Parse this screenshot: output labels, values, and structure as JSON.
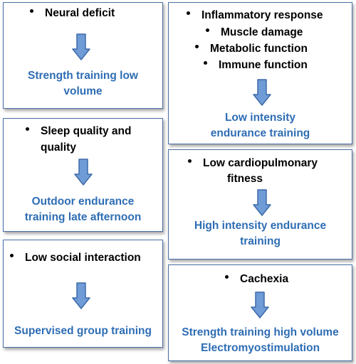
{
  "boxes": [
    {
      "causes": [
        "Neural deficit"
      ],
      "outcome": [
        "Strength training low",
        "volume"
      ],
      "arrow_icon": "down-arrow-icon"
    },
    {
      "causes": [
        "Inflammatory response",
        "Muscle damage",
        "Metabolic function",
        "Immune function"
      ],
      "outcome": [
        "Low intensity",
        "endurance training"
      ],
      "arrow_icon": "down-arrow-icon"
    },
    {
      "causes": [
        "Sleep quality and",
        "quality"
      ],
      "outcome": [
        "Outdoor endurance",
        "training late afternoon"
      ],
      "arrow_icon": "down-arrow-icon"
    },
    {
      "causes": [
        "Low cardiopulmonary",
        "fitness"
      ],
      "outcome": [
        "High intensity endurance",
        "training"
      ],
      "arrow_icon": "down-arrow-icon"
    },
    {
      "causes": [
        "Low social interaction"
      ],
      "outcome": [
        "Supervised group training"
      ],
      "arrow_icon": "down-arrow-icon"
    },
    {
      "causes": [
        "Cachexia"
      ],
      "outcome": [
        "Strength training high volume",
        "Electromyostimulation"
      ],
      "arrow_icon": "down-arrow-icon"
    }
  ],
  "colors": {
    "cause_text": "#000000",
    "outcome_text": "#2e6db4",
    "border": "#4a6fa5",
    "arrow_fill": "#6f9bd6",
    "arrow_stroke": "#3d6aa8"
  }
}
